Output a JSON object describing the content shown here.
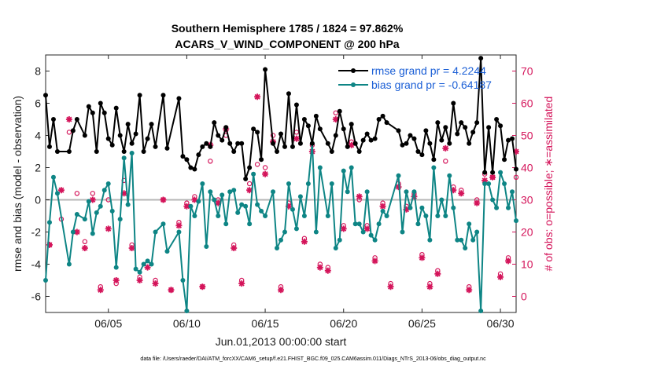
{
  "chart_data": {
    "type": "line",
    "title_line1": "Southern Hemisphere 1785 / 1824 = 97.862%",
    "title_line2": "ACARS_V_WIND_COMPONENT @ 200 hPa",
    "xlabel": "Jun.01,2013 00:00:00 start",
    "ylabel": "rmse and bias (model - observation)",
    "ylabel_right": "# of obs: o=possible; ∗=assimilated",
    "footnote": "data file: /Users/raeder/DAI/ATM_forcXX/CAM6_setup/f.e21.FHIST_BGC.f09_025.CAM6assim.011/Diags_NTrS_2013-06/obs_diag_output.nc",
    "xlim": [
      1,
      31
    ],
    "ylim": [
      -7,
      9
    ],
    "ylim_right": [
      -5,
      75
    ],
    "x_ticks": [
      5,
      10,
      15,
      20,
      25,
      30
    ],
    "x_tick_labels": [
      "06/05",
      "06/10",
      "06/15",
      "06/20",
      "06/25",
      "06/30"
    ],
    "y_ticks": [
      -6,
      -4,
      -2,
      0,
      2,
      4,
      6,
      8
    ],
    "y_tick_labels": [
      "-6",
      "-4",
      "-2",
      "0",
      "2",
      "4",
      "6",
      "8"
    ],
    "y_ticks_right": [
      0,
      10,
      20,
      30,
      40,
      50,
      60,
      70
    ],
    "y_tick_labels_right": [
      "0",
      "10",
      "20",
      "30",
      "40",
      "50",
      "60",
      "70"
    ],
    "colors": {
      "rmse": "#000000",
      "bias": "#0e8585",
      "counts": "#d4145a",
      "zero_line": "#b5b5b5",
      "legend_text": "#1b5fd6"
    },
    "series": [
      {
        "name": "rmse grand pr = 4.2244",
        "x": [
          1.0,
          1.25,
          1.5,
          1.75,
          2.5,
          2.75,
          3.0,
          3.5,
          3.75,
          4.0,
          4.25,
          4.5,
          4.75,
          5.0,
          5.25,
          5.5,
          5.75,
          6.0,
          6.25,
          6.5,
          6.75,
          7.0,
          7.25,
          7.5,
          7.75,
          8.0,
          8.5,
          8.75,
          9.5,
          9.75,
          10.0,
          10.25,
          10.5,
          10.75,
          11.0,
          11.25,
          11.5,
          11.75,
          12.0,
          12.25,
          12.5,
          12.75,
          13.0,
          13.25,
          13.5,
          13.75,
          14.0,
          14.25,
          14.5,
          14.75,
          15.0,
          15.5,
          15.75,
          16.0,
          16.25,
          16.5,
          16.75,
          17.0,
          17.25,
          17.5,
          17.75,
          18.0,
          18.25,
          18.5,
          19.0,
          19.25,
          19.5,
          19.75,
          20.0,
          20.25,
          20.5,
          20.75,
          21.0,
          21.25,
          21.5,
          21.75,
          22.0,
          22.25,
          22.5,
          22.75,
          23.5,
          23.75,
          24.0,
          24.25,
          24.5,
          24.75,
          25.0,
          25.25,
          25.5,
          25.75,
          26.0,
          26.25,
          26.5,
          26.75,
          27.0,
          27.25,
          27.5,
          27.75,
          28.0,
          28.25,
          28.5,
          28.75,
          29.0,
          29.25,
          29.5,
          29.75,
          30.0,
          30.25,
          30.5,
          30.75,
          31.0
        ],
        "values": [
          6.5,
          3.3,
          5.0,
          3.0,
          3.0,
          4.3,
          5.0,
          4.0,
          5.8,
          5.4,
          3.0,
          6.0,
          5.4,
          3.8,
          3.4,
          5.7,
          4.0,
          3.0,
          4.7,
          3.5,
          4.1,
          6.5,
          3.0,
          3.8,
          4.7,
          3.3,
          6.5,
          3.2,
          6.3,
          2.7,
          2.5,
          2.0,
          1.9,
          2.8,
          3.3,
          3.5,
          3.3,
          4.8,
          4.0,
          3.7,
          4.5,
          3.5,
          3.0,
          3.5,
          3.5,
          1.3,
          2.0,
          4.4,
          4.2,
          2.5,
          8.1,
          3.5,
          3.0,
          4.1,
          3.3,
          6.6,
          3.3,
          5.9,
          3.5,
          5.0,
          4.6,
          3.5,
          5.2,
          4.4,
          3.5,
          3.0,
          4.0,
          5.5,
          4.4,
          3.3,
          4.7,
          3.5,
          3.0,
          3.7,
          4.1,
          3.7,
          3.8,
          5.0,
          5.2,
          4.8,
          4.3,
          3.4,
          3.5,
          4.0,
          3.8,
          3.0,
          2.8,
          4.3,
          3.5,
          2.5,
          4.8,
          3.7,
          4.5,
          3.5,
          6.0,
          4.1,
          4.8,
          4.5,
          3.5,
          4.2,
          4.8,
          8.8,
          1.7,
          4.5,
          1.7,
          5.0,
          4.6,
          2.5,
          3.7,
          3.8,
          1.9
        ]
      },
      {
        "name": "bias grand pr = -0.64187",
        "x": [
          1.0,
          1.25,
          1.5,
          1.75,
          2.5,
          2.75,
          3.0,
          3.5,
          3.75,
          4.0,
          4.25,
          4.5,
          4.75,
          5.0,
          5.25,
          5.5,
          5.75,
          6.0,
          6.25,
          6.5,
          6.75,
          7.0,
          7.25,
          7.5,
          7.75,
          8.0,
          8.5,
          8.75,
          9.5,
          9.75,
          10.0,
          10.25,
          10.5,
          10.75,
          11.0,
          11.25,
          11.5,
          11.75,
          12.0,
          12.25,
          12.5,
          12.75,
          13.0,
          13.25,
          13.5,
          13.75,
          14.0,
          14.25,
          14.5,
          14.75,
          15.0,
          15.5,
          15.75,
          16.0,
          16.25,
          16.5,
          16.75,
          17.0,
          17.25,
          17.5,
          17.75,
          18.0,
          18.25,
          18.5,
          19.0,
          19.25,
          19.5,
          19.75,
          20.0,
          20.25,
          20.5,
          20.75,
          21.0,
          21.25,
          21.5,
          21.75,
          22.0,
          22.25,
          22.5,
          22.75,
          23.5,
          23.75,
          24.0,
          24.25,
          24.5,
          24.75,
          25.0,
          25.25,
          25.5,
          25.75,
          26.0,
          26.25,
          26.5,
          26.75,
          27.0,
          27.25,
          27.5,
          27.75,
          28.0,
          28.25,
          28.5,
          28.75,
          29.0,
          29.25,
          29.5,
          29.75,
          30.0,
          30.25,
          30.5,
          30.75,
          31.0
        ],
        "values": [
          -5.0,
          -1.4,
          1.4,
          0.4,
          -4.0,
          -2.0,
          -0.9,
          -1.2,
          -0.1,
          -2.1,
          -0.8,
          -0.4,
          0.6,
          1.0,
          -0.7,
          -4.2,
          -1.2,
          2.6,
          -0.3,
          2.9,
          -4.3,
          -4.5,
          -4.0,
          -3.8,
          -4.0,
          -2.0,
          -1.5,
          -3.2,
          -2.0,
          -5.0,
          -6.9,
          -0.4,
          -1.0,
          -0.1,
          1.0,
          -2.9,
          0.5,
          0.0,
          -1.0,
          0.3,
          -1.5,
          0.5,
          0.6,
          -0.8,
          -0.3,
          -0.4,
          -1.5,
          1.6,
          -0.3,
          -0.7,
          -1.0,
          0.5,
          -3.0,
          -2.5,
          -2.0,
          1.0,
          -0.6,
          -1.8,
          0.2,
          -1.0,
          1.0,
          3.5,
          -2.0,
          2.0,
          -1.0,
          1.0,
          -3.0,
          -2.5,
          1.8,
          0.5,
          2.0,
          -1.5,
          -1.5,
          -2.0,
          0.5,
          -2.2,
          -2.5,
          -1.5,
          -0.7,
          -1.0,
          1.5,
          -2.0,
          0.5,
          -0.5,
          0.5,
          -1.5,
          -0.5,
          -1.0,
          -2.5,
          2.0,
          -1.0,
          0.0,
          -1.0,
          1.5,
          -0.5,
          -2.5,
          -2.5,
          -3.0,
          -1.5,
          -2.5,
          -2.0,
          -6.9,
          1.0,
          1.0,
          0.0,
          -0.5,
          1.7,
          1.0,
          -0.5,
          0.5,
          -1.3
        ]
      }
    ],
    "count_series": [
      {
        "name": "possible",
        "marker": "o",
        "x": [
          1.25,
          2.0,
          2.5,
          3.0,
          3.5,
          4.0,
          4.5,
          5.0,
          5.5,
          6.0,
          6.5,
          7.0,
          7.5,
          8.0,
          8.5,
          9.0,
          9.5,
          10.0,
          10.5,
          11.0,
          11.5,
          12.0,
          12.5,
          13.0,
          13.5,
          14.0,
          14.5,
          15.0,
          15.5,
          16.0,
          16.5,
          17.0,
          17.5,
          18.0,
          18.5,
          19.0,
          19.5,
          20.0,
          20.5,
          21.0,
          21.5,
          22.0,
          22.5,
          23.0,
          23.5,
          24.0,
          24.5,
          25.0,
          25.5,
          26.0,
          26.5,
          27.0,
          27.5,
          28.0,
          28.5,
          29.0,
          29.5,
          30.0,
          30.5,
          31.0
        ],
        "values": [
          16,
          24,
          51,
          32,
          17,
          32,
          3,
          30,
          4,
          36,
          16,
          6,
          10,
          5,
          30,
          2,
          23,
          29,
          31,
          3,
          42,
          30,
          50,
          16,
          5,
          35,
          41,
          40,
          50,
          3,
          29,
          51,
          18,
          47,
          10,
          9,
          57,
          22,
          48,
          30,
          22,
          12,
          29,
          4,
          35,
          28,
          32,
          13,
          4,
          8,
          42,
          34,
          33,
          3,
          30,
          38,
          37,
          7,
          12,
          37
        ]
      },
      {
        "name": "assimilated",
        "marker": "*",
        "x": [
          1.25,
          2.0,
          2.5,
          3.0,
          3.5,
          4.0,
          4.5,
          5.0,
          5.5,
          6.0,
          6.5,
          7.0,
          7.5,
          8.0,
          8.5,
          9.0,
          9.5,
          10.0,
          10.5,
          11.0,
          11.5,
          12.0,
          12.5,
          13.0,
          13.5,
          14.0,
          14.5,
          15.0,
          15.5,
          16.0,
          16.5,
          17.0,
          17.5,
          18.0,
          18.5,
          19.0,
          19.5,
          20.0,
          20.5,
          21.0,
          21.5,
          22.0,
          22.5,
          23.0,
          23.5,
          24.0,
          24.5,
          25.0,
          25.5,
          26.0,
          26.5,
          27.0,
          27.5,
          28.0,
          28.5,
          29.0,
          29.5,
          30.0,
          30.5,
          31.0
        ],
        "values": [
          16,
          33,
          55,
          20,
          15,
          30,
          2,
          21,
          5,
          32,
          15,
          5,
          9,
          4,
          30,
          2,
          22,
          28,
          30,
          3,
          47,
          29,
          52,
          15,
          4,
          33,
          62,
          38,
          48,
          2,
          28,
          49,
          17,
          45,
          9,
          8,
          55,
          21,
          47,
          31,
          21,
          11,
          28,
          3,
          34,
          27,
          31,
          12,
          3,
          7,
          46,
          33,
          32,
          2,
          29,
          36,
          37,
          6,
          11,
          45
        ]
      }
    ]
  }
}
